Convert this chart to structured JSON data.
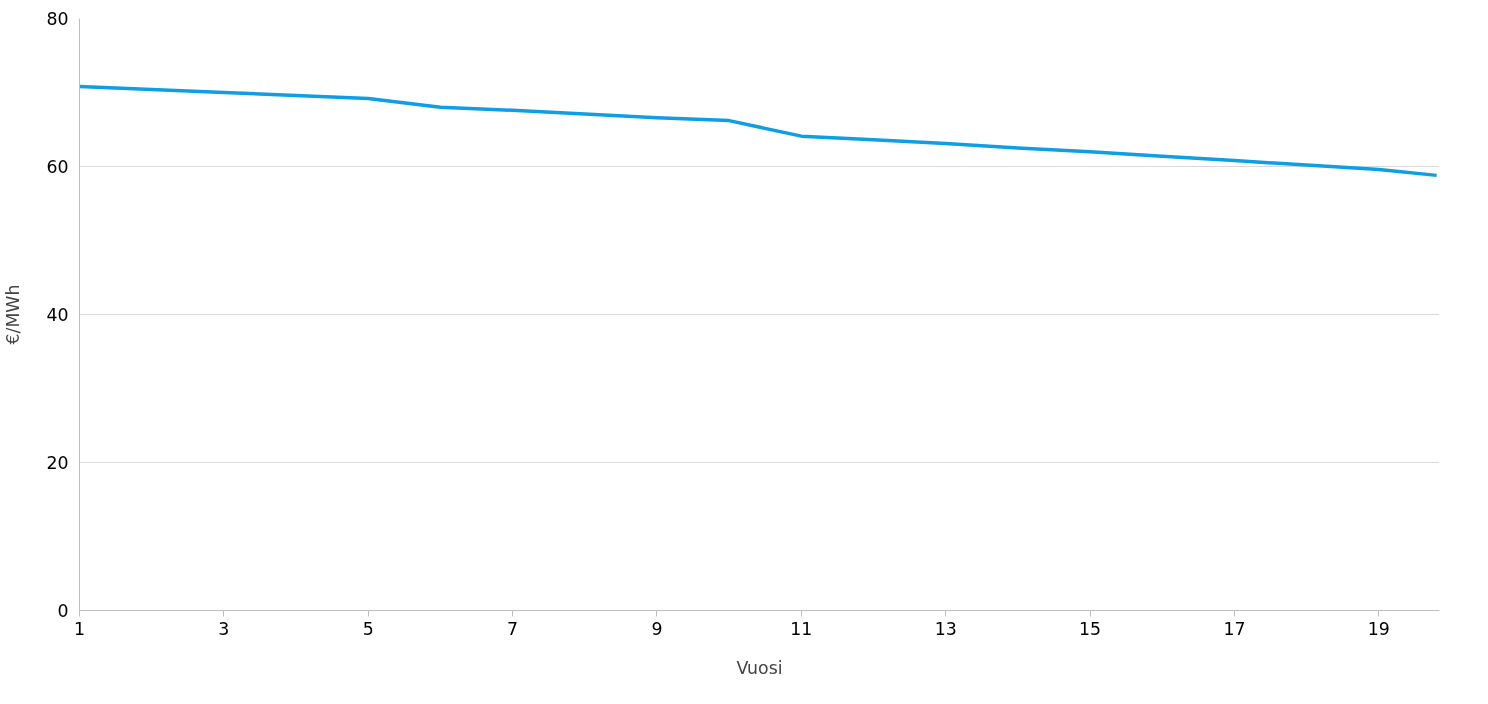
{
  "chart_data": {
    "type": "line",
    "xlabel": "Vuosi",
    "ylabel": "€/MWh",
    "x": [
      1,
      2,
      3,
      4,
      5,
      6,
      7,
      8,
      9,
      10,
      11,
      12,
      13,
      14,
      15,
      16,
      17,
      18,
      19,
      19.8
    ],
    "series": [
      {
        "color": "#0e9ee6",
        "values": [
          70.8,
          70.4,
          70.0,
          69.6,
          69.2,
          68.0,
          67.6,
          67.1,
          66.6,
          66.2,
          64.1,
          63.6,
          63.1,
          62.5,
          62.0,
          61.4,
          60.8,
          60.2,
          59.6,
          58.8
        ]
      }
    ],
    "xlim": [
      1,
      19.84
    ],
    "xticks": [
      1,
      3,
      5,
      7,
      9,
      11,
      13,
      15,
      17,
      19
    ],
    "ylim": [
      0,
      80
    ],
    "yticks": [
      0,
      20,
      40,
      60,
      80
    ],
    "grid": "y",
    "marker": "none",
    "line_style": "solid"
  }
}
